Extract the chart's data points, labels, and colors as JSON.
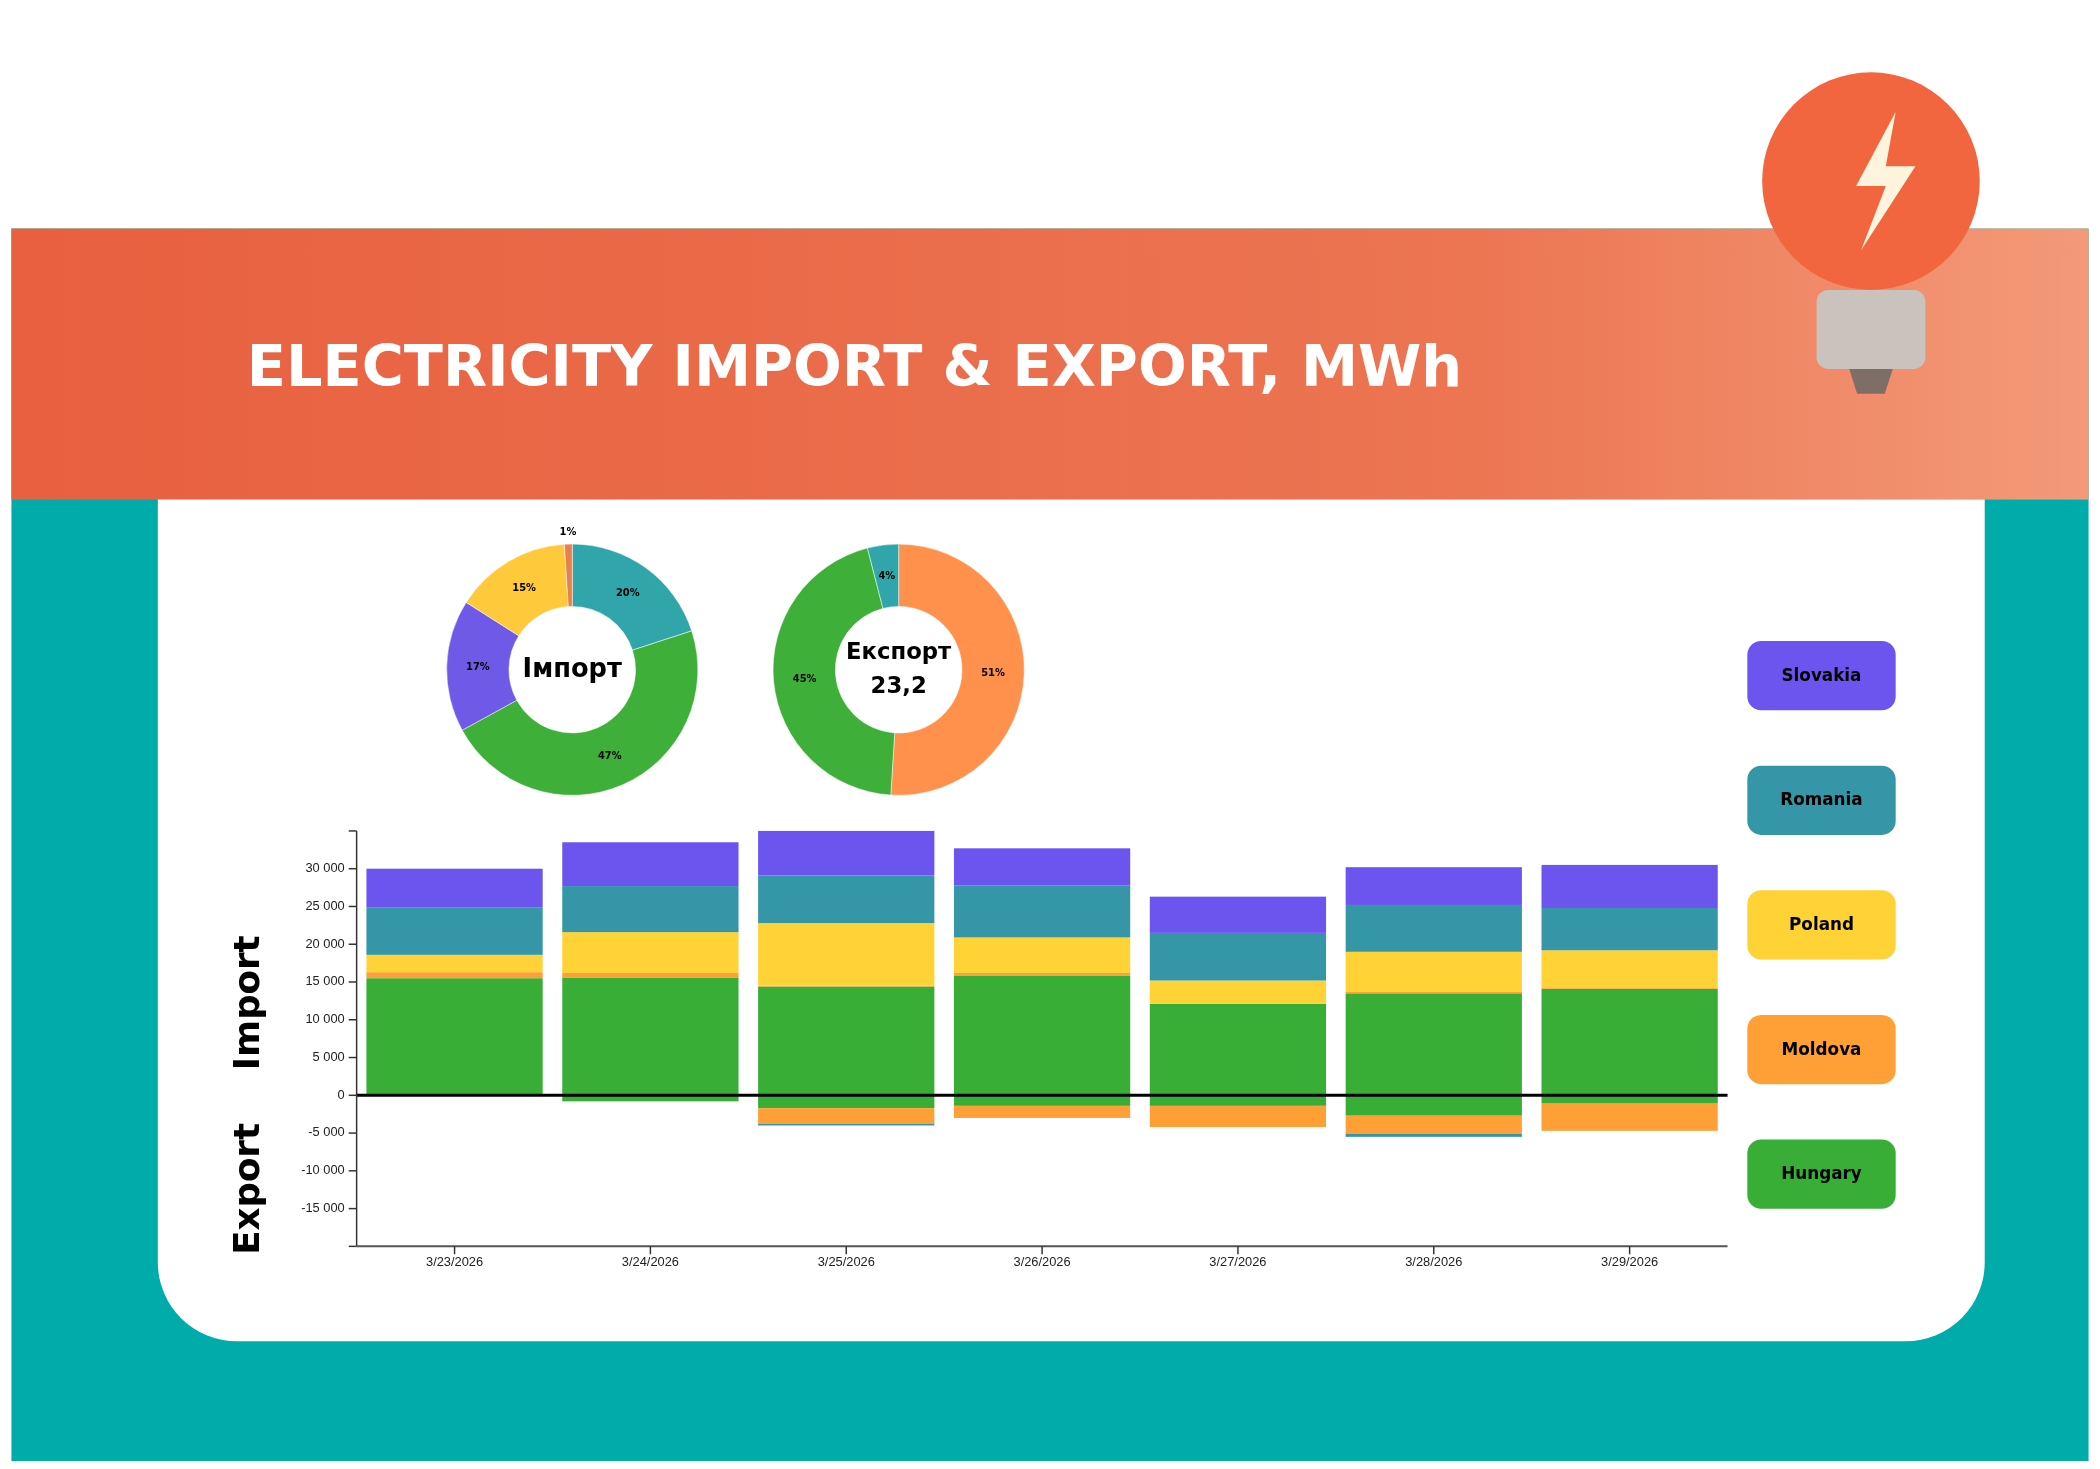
{
  "chart_data": [
    {
      "type": "donut",
      "title": "Імпорт",
      "categories": [
        null,
        null,
        null,
        null,
        null
      ],
      "values": [
        20,
        47,
        17,
        15,
        1
      ],
      "colors": [
        "#30a6aa",
        "#3eb03a",
        "#6e5ae6",
        "#ffc93c",
        "#e8804a"
      ],
      "value_labels": [
        "20%",
        "47%",
        "17%",
        "15%",
        "1%"
      ]
    },
    {
      "type": "donut",
      "title": "Експорт",
      "subtitle": "23,2",
      "categories": [
        null,
        null,
        null
      ],
      "values": [
        51,
        45,
        4
      ],
      "colors": [
        "#ff914d",
        "#3eb03a",
        "#30a6aa"
      ],
      "value_labels": [
        "51%",
        "45%",
        "4%"
      ]
    },
    {
      "type": "bar",
      "stacked": true,
      "title": "ELECTRICITY IMPORT & EXPORT, MWh",
      "ylabel": "Import",
      "annotations": [
        "Export"
      ],
      "legend": "right",
      "categories": [
        "3/23/2026",
        "3/24/2026",
        "3/25/2026",
        "3/26/2026",
        "3/27/2026",
        "3/28/2026",
        "3/29/2026"
      ],
      "ylim": [
        -20000,
        35000
      ],
      "yticks": [
        {
          "value": -20000,
          "label": null
        },
        {
          "value": -15000,
          "label": "-15 000"
        },
        {
          "value": -10000,
          "label": "-10 000"
        },
        {
          "value": -5000,
          "label": "-5 000"
        },
        0,
        {
          "value": 5000,
          "label": "5 000"
        },
        {
          "value": 10000,
          "label": "10 000"
        },
        {
          "value": 15000,
          "label": "15 000"
        },
        {
          "value": 20000,
          "label": "20 000"
        },
        {
          "value": 25000,
          "label": "25 000"
        },
        {
          "value": 30000,
          "label": "30 000"
        },
        {
          "value": 35000,
          "label": null
        }
      ],
      "ref_lines": [
        {
          "axis": "y",
          "value": 0,
          "color": "#000000"
        }
      ],
      "series": [
        {
          "name": "Hungary",
          "color": "#38ae37",
          "values": [
            15500,
            15600,
            14400,
            15800,
            12100,
            13500,
            14100
          ]
        },
        {
          "name": "Moldova",
          "color": "#ffa036",
          "values": [
            800,
            600,
            100,
            400,
            null,
            200,
            100
          ]
        },
        {
          "name": "Poland",
          "color": "#ffd236",
          "values": [
            2300,
            5400,
            8300,
            4700,
            3100,
            5300,
            5000
          ]
        },
        {
          "name": "Romania",
          "color": "#3496a6",
          "values": [
            6300,
            6100,
            6300,
            6900,
            6300,
            6200,
            5600
          ]
        },
        {
          "name": "Slovakia",
          "color": "#6b55ee",
          "values": [
            5100,
            5800,
            5900,
            4900,
            4800,
            5000,
            5700
          ]
        },
        {
          "color": "#38ae37",
          "values": [
            null,
            -800,
            -1700,
            -1400,
            -1400,
            -2700,
            -1100
          ]
        },
        {
          "color": "#ffa036",
          "values": [
            null,
            null,
            -2100,
            -1600,
            -2800,
            -2400,
            -3600
          ]
        },
        {
          "color": "#3496a6",
          "values": [
            null,
            null,
            -200,
            null,
            null,
            -400,
            null
          ]
        }
      ]
    }
  ]
}
